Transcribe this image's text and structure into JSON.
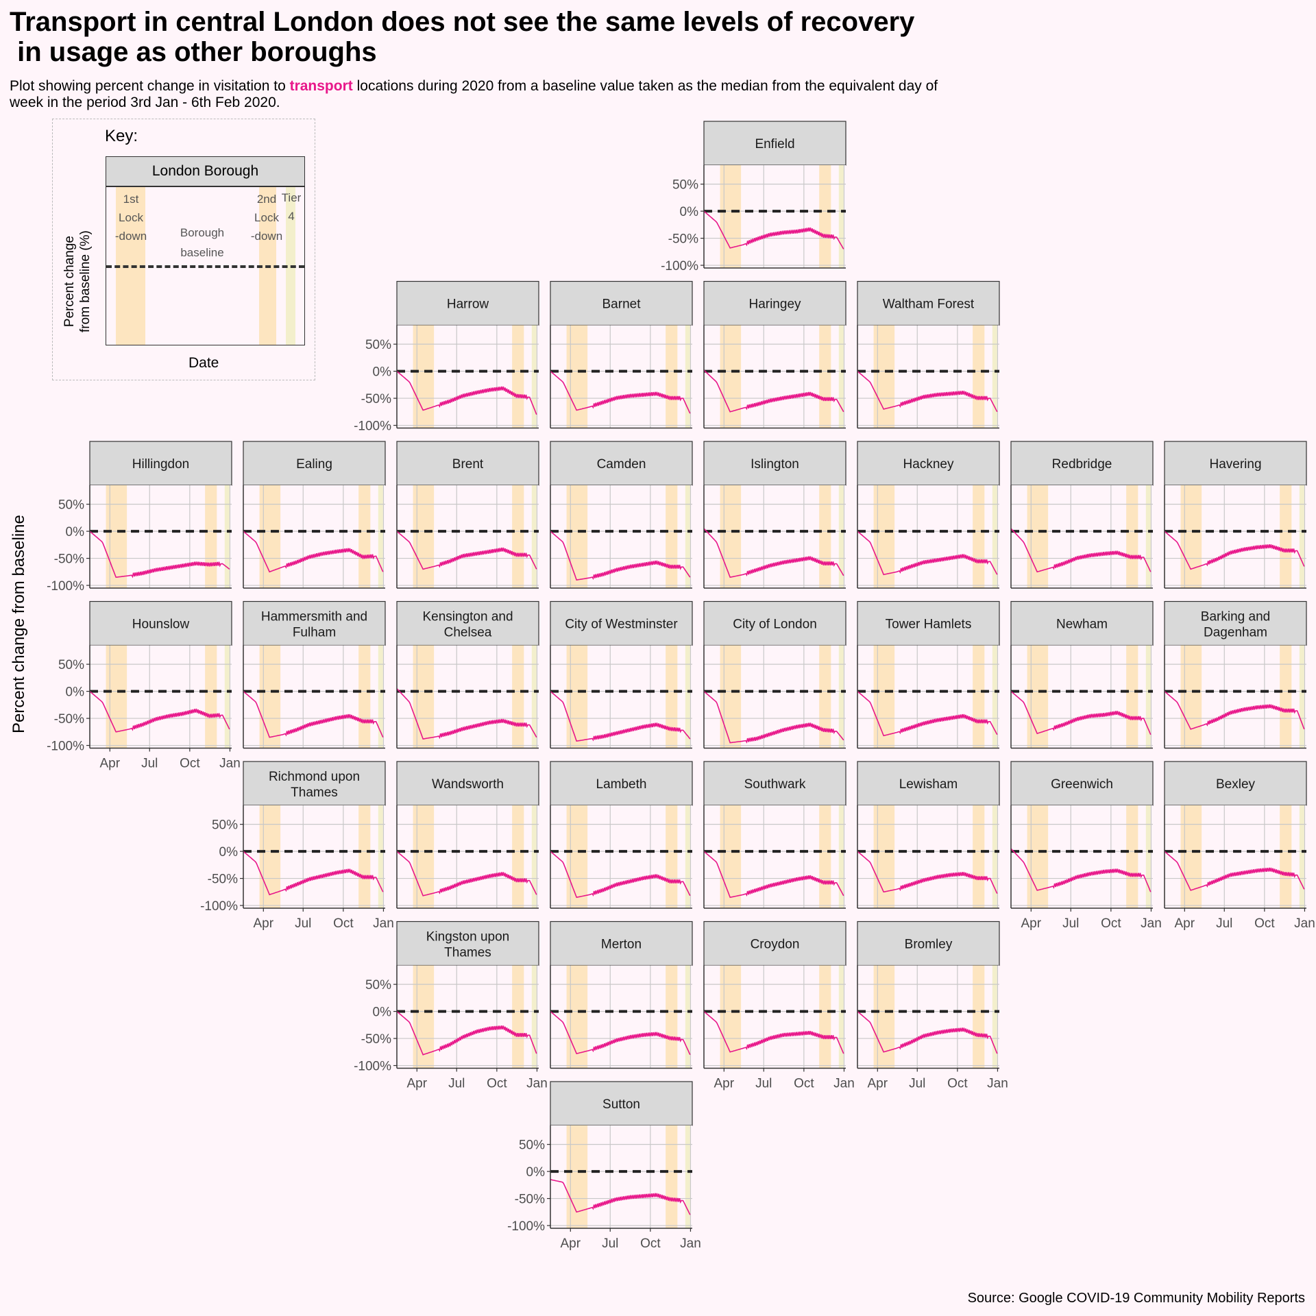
{
  "title": "Transport in central London does not see the same levels of recovery\n in usage as other boroughs",
  "subtitle": {
    "pre": "Plot showing percent change in visitation to ",
    "highlight": "transport",
    "post": " locations during 2020 from a baseline value taken as the median from the equivalent day of week in the period 3rd Jan - 6th Feb 2020."
  },
  "source": "Source: Google COVID-19 Community Mobility Reports",
  "colors": {
    "line": "#e8178a",
    "lockdown": "#fde5c0",
    "tier4": "#f3efcc",
    "background": "#fff5fa",
    "strip": "#d9d9d9"
  },
  "key": {
    "heading": "Key:",
    "panel_label": "London Borough",
    "y_label_1": "Percent change",
    "y_label_2": "from baseline (%)",
    "x_label": "Date",
    "band1": [
      "1st",
      "Lock",
      "-down"
    ],
    "band2": [
      "2nd",
      "Lock",
      "-down"
    ],
    "band3": [
      "Tier",
      "4"
    ],
    "baseline": [
      "Borough",
      "baseline"
    ]
  },
  "chart_data": {
    "type": "line",
    "ylabel": "Percent change from baseline",
    "xlabel": "",
    "y_ticks": [
      "50%",
      "0%",
      "-50%",
      "-100%"
    ],
    "x_ticks": [
      "Apr",
      "Jul",
      "Oct",
      "Jan"
    ],
    "ylim": [
      -105,
      85
    ],
    "xlim": [
      "2020-02-15",
      "2021-01-05"
    ],
    "baseline_y": 0,
    "shaded_periods": [
      {
        "label": "1st Lock-down",
        "start": "2020-03-23",
        "end": "2020-05-10",
        "color": "#fde5c0"
      },
      {
        "label": "2nd Lock-down",
        "start": "2020-11-05",
        "end": "2020-12-02",
        "color": "#fde5c0"
      },
      {
        "label": "Tier 4",
        "start": "2020-12-20",
        "end": "2020-12-31",
        "color": "#f3efcc"
      }
    ],
    "x_months": [
      "2020-02-15",
      "2020-03-15",
      "2020-04-15",
      "2020-05-15",
      "2020-06-15",
      "2020-07-15",
      "2020-08-15",
      "2020-09-15",
      "2020-10-15",
      "2020-11-15",
      "2020-12-15",
      "2020-12-31"
    ],
    "series": [
      {
        "name": "Enfield",
        "values": [
          0,
          -20,
          -68,
          -62,
          -52,
          -44,
          -40,
          -38,
          -34,
          -46,
          -48,
          -70
        ]
      },
      {
        "name": "Harrow",
        "values": [
          0,
          -20,
          -72,
          -64,
          -56,
          -46,
          -40,
          -35,
          -32,
          -46,
          -48,
          -80
        ]
      },
      {
        "name": "Barnet",
        "values": [
          0,
          -20,
          -72,
          -66,
          -58,
          -50,
          -46,
          -44,
          -42,
          -50,
          -50,
          -78
        ]
      },
      {
        "name": "Haringey",
        "values": [
          2,
          -20,
          -75,
          -68,
          -62,
          -55,
          -50,
          -46,
          -42,
          -52,
          -52,
          -75
        ]
      },
      {
        "name": "Waltham Forest",
        "values": [
          0,
          -20,
          -70,
          -64,
          -56,
          -48,
          -44,
          -42,
          -40,
          -50,
          -50,
          -75
        ]
      },
      {
        "name": "Hillingdon",
        "values": [
          0,
          -20,
          -85,
          -82,
          -78,
          -72,
          -68,
          -64,
          -60,
          -62,
          -60,
          -70
        ]
      },
      {
        "name": "Ealing",
        "values": [
          0,
          -20,
          -75,
          -66,
          -58,
          -48,
          -42,
          -38,
          -35,
          -48,
          -46,
          -75
        ]
      },
      {
        "name": "Brent",
        "values": [
          0,
          -20,
          -70,
          -64,
          -56,
          -46,
          -42,
          -38,
          -34,
          -44,
          -44,
          -70
        ]
      },
      {
        "name": "Camden",
        "values": [
          0,
          -20,
          -90,
          -86,
          -80,
          -72,
          -66,
          -62,
          -58,
          -66,
          -66,
          -85
        ]
      },
      {
        "name": "Islington",
        "values": [
          5,
          -20,
          -85,
          -80,
          -72,
          -64,
          -58,
          -54,
          -50,
          -60,
          -60,
          -82
        ]
      },
      {
        "name": "Hackney",
        "values": [
          0,
          -20,
          -80,
          -75,
          -66,
          -58,
          -54,
          -50,
          -46,
          -56,
          -56,
          -80
        ]
      },
      {
        "name": "Redbridge",
        "values": [
          5,
          -20,
          -75,
          -68,
          -60,
          -50,
          -45,
          -42,
          -40,
          -48,
          -48,
          -75
        ]
      },
      {
        "name": "Havering",
        "values": [
          0,
          -20,
          -70,
          -62,
          -52,
          -40,
          -34,
          -30,
          -28,
          -36,
          -36,
          -65
        ]
      },
      {
        "name": "Hounslow",
        "values": [
          0,
          -20,
          -75,
          -70,
          -62,
          -52,
          -46,
          -42,
          -36,
          -46,
          -44,
          -70
        ]
      },
      {
        "name": "Hammersmith and Fulham",
        "values": [
          0,
          -20,
          -85,
          -80,
          -72,
          -62,
          -56,
          -50,
          -46,
          -56,
          -56,
          -85
        ]
      },
      {
        "name": "Kensington and Chelsea",
        "values": [
          5,
          -20,
          -88,
          -84,
          -78,
          -70,
          -64,
          -58,
          -55,
          -62,
          -62,
          -85
        ]
      },
      {
        "name": "City of Westminster",
        "values": [
          0,
          -20,
          -92,
          -88,
          -84,
          -78,
          -72,
          -66,
          -62,
          -70,
          -72,
          -88
        ]
      },
      {
        "name": "City of London",
        "values": [
          0,
          -20,
          -95,
          -92,
          -88,
          -80,
          -72,
          -66,
          -62,
          -72,
          -74,
          -90
        ]
      },
      {
        "name": "Tower Hamlets",
        "values": [
          0,
          -20,
          -82,
          -76,
          -68,
          -60,
          -54,
          -50,
          -46,
          -56,
          -56,
          -80
        ]
      },
      {
        "name": "Newham",
        "values": [
          0,
          -20,
          -78,
          -70,
          -62,
          -52,
          -46,
          -44,
          -40,
          -50,
          -50,
          -80
        ]
      },
      {
        "name": "Barking and Dagenham",
        "values": [
          0,
          -20,
          -70,
          -62,
          -52,
          -40,
          -34,
          -30,
          -28,
          -36,
          -36,
          -70
        ]
      },
      {
        "name": "Richmond upon Thames",
        "values": [
          0,
          -20,
          -80,
          -72,
          -62,
          -52,
          -46,
          -40,
          -36,
          -48,
          -48,
          -75
        ]
      },
      {
        "name": "Wandsworth",
        "values": [
          0,
          -20,
          -82,
          -76,
          -68,
          -58,
          -52,
          -46,
          -42,
          -54,
          -54,
          -80
        ]
      },
      {
        "name": "Lambeth",
        "values": [
          0,
          -20,
          -85,
          -80,
          -72,
          -62,
          -56,
          -50,
          -46,
          -56,
          -56,
          -82
        ]
      },
      {
        "name": "Southwark",
        "values": [
          0,
          -20,
          -85,
          -80,
          -72,
          -64,
          -58,
          -52,
          -48,
          -58,
          -58,
          -82
        ]
      },
      {
        "name": "Lewisham",
        "values": [
          0,
          -20,
          -75,
          -70,
          -62,
          -54,
          -48,
          -44,
          -42,
          -50,
          -50,
          -78
        ]
      },
      {
        "name": "Greenwich",
        "values": [
          5,
          -20,
          -72,
          -66,
          -58,
          -48,
          -42,
          -38,
          -36,
          -44,
          -44,
          -75
        ]
      },
      {
        "name": "Bexley",
        "values": [
          0,
          -20,
          -72,
          -64,
          -54,
          -44,
          -40,
          -36,
          -34,
          -42,
          -44,
          -70
        ]
      },
      {
        "name": "Kingston upon Thames",
        "values": [
          0,
          -20,
          -80,
          -72,
          -62,
          -48,
          -38,
          -32,
          -30,
          -44,
          -44,
          -78
        ]
      },
      {
        "name": "Merton",
        "values": [
          0,
          -20,
          -78,
          -72,
          -64,
          -54,
          -48,
          -44,
          -42,
          -50,
          -52,
          -80
        ]
      },
      {
        "name": "Croydon",
        "values": [
          0,
          -20,
          -75,
          -68,
          -60,
          -50,
          -44,
          -42,
          -40,
          -48,
          -48,
          -78
        ]
      },
      {
        "name": "Bromley",
        "values": [
          0,
          -20,
          -75,
          -68,
          -58,
          -46,
          -40,
          -36,
          -34,
          -44,
          -46,
          -78
        ]
      },
      {
        "name": "Sutton",
        "values": [
          -15,
          -20,
          -75,
          -68,
          -60,
          -52,
          -48,
          -46,
          -44,
          -52,
          -54,
          -80
        ]
      }
    ]
  }
}
